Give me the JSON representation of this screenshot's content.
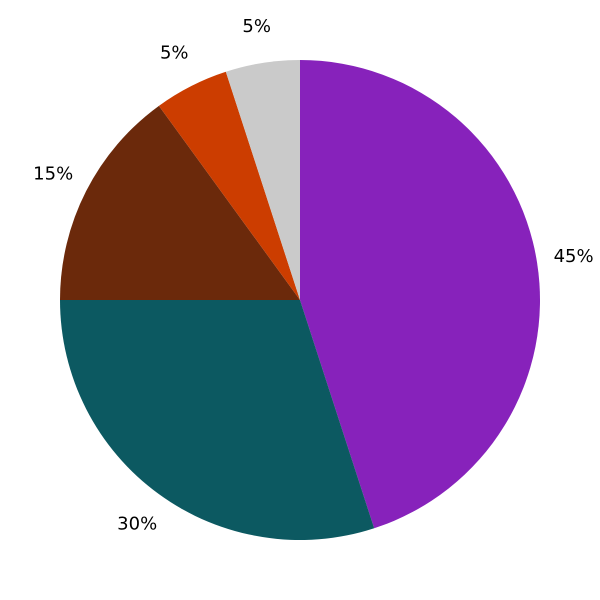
{
  "chart_data": {
    "type": "pie",
    "start_angle": "top",
    "direction": "clockwise",
    "legend": "none",
    "slices": [
      {
        "value": 45,
        "label": "45%",
        "color": "#8722bb"
      },
      {
        "value": 30,
        "label": "30%",
        "color": "#0c5961"
      },
      {
        "value": 15,
        "label": "15%",
        "color": "#6b290b"
      },
      {
        "value": 5,
        "label": "5%",
        "color": "#cc3d00"
      },
      {
        "value": 5,
        "label": "5%",
        "color": "#cacaca"
      }
    ]
  }
}
